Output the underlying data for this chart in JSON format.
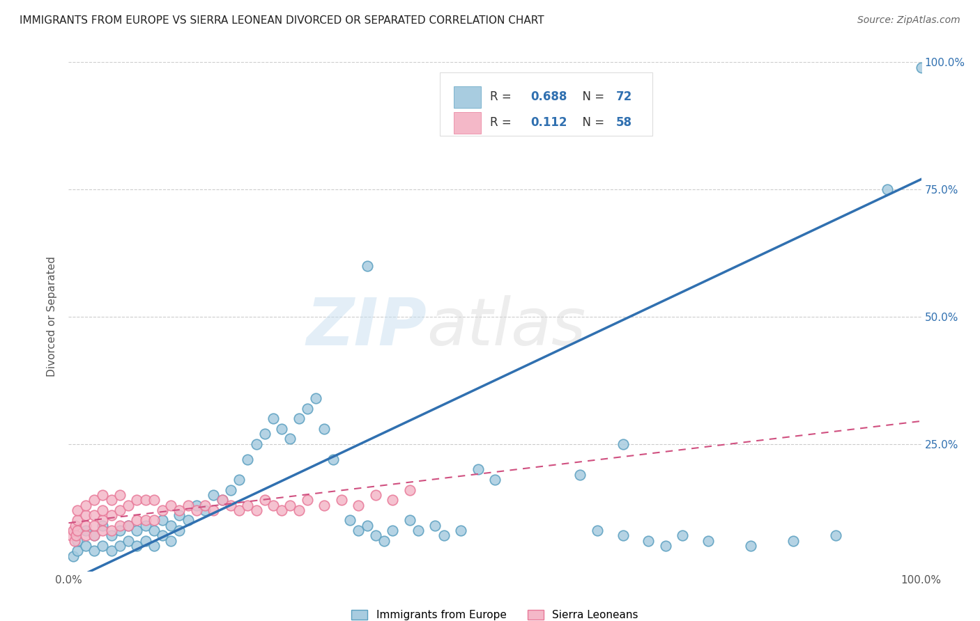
{
  "title": "IMMIGRANTS FROM EUROPE VS SIERRA LEONEAN DIVORCED OR SEPARATED CORRELATION CHART",
  "source": "Source: ZipAtlas.com",
  "ylabel": "Divorced or Separated",
  "xlim": [
    0,
    1
  ],
  "ylim": [
    0,
    1
  ],
  "legend_r1": "R = 0.688",
  "legend_n1": "N = 72",
  "legend_r2": "R =  0.112",
  "legend_n2": "N = 58",
  "blue_color": "#a8cce0",
  "blue_edge_color": "#5a9fc0",
  "pink_color": "#f4b8c8",
  "pink_edge_color": "#e87898",
  "blue_line_color": "#3070b0",
  "pink_line_color": "#d05080",
  "watermark_zip": "ZIP",
  "watermark_atlas": "atlas",
  "blue_line_y_start": -0.02,
  "blue_line_y_end": 0.77,
  "pink_line_y_start": 0.095,
  "pink_line_y_end": 0.295,
  "background_color": "#ffffff",
  "grid_color": "#cccccc",
  "blue_scatter_x": [
    0.005,
    0.01,
    0.01,
    0.02,
    0.02,
    0.03,
    0.03,
    0.04,
    0.04,
    0.05,
    0.05,
    0.06,
    0.06,
    0.07,
    0.07,
    0.08,
    0.08,
    0.09,
    0.09,
    0.1,
    0.1,
    0.11,
    0.11,
    0.12,
    0.12,
    0.13,
    0.13,
    0.14,
    0.15,
    0.16,
    0.17,
    0.18,
    0.19,
    0.2,
    0.21,
    0.22,
    0.23,
    0.24,
    0.25,
    0.26,
    0.27,
    0.28,
    0.29,
    0.3,
    0.31,
    0.33,
    0.34,
    0.35,
    0.36,
    0.37,
    0.38,
    0.4,
    0.41,
    0.43,
    0.44,
    0.46,
    0.48,
    0.5,
    0.6,
    0.62,
    0.65,
    0.68,
    0.7,
    0.72,
    0.75,
    0.8,
    0.85,
    0.9,
    0.96,
    1.0,
    0.35,
    0.65
  ],
  "blue_scatter_y": [
    0.03,
    0.04,
    0.06,
    0.05,
    0.08,
    0.04,
    0.07,
    0.05,
    0.09,
    0.04,
    0.07,
    0.05,
    0.08,
    0.06,
    0.09,
    0.05,
    0.08,
    0.06,
    0.09,
    0.05,
    0.08,
    0.07,
    0.1,
    0.06,
    0.09,
    0.08,
    0.11,
    0.1,
    0.13,
    0.12,
    0.15,
    0.14,
    0.16,
    0.18,
    0.22,
    0.25,
    0.27,
    0.3,
    0.28,
    0.26,
    0.3,
    0.32,
    0.34,
    0.28,
    0.22,
    0.1,
    0.08,
    0.09,
    0.07,
    0.06,
    0.08,
    0.1,
    0.08,
    0.09,
    0.07,
    0.08,
    0.2,
    0.18,
    0.19,
    0.08,
    0.07,
    0.06,
    0.05,
    0.07,
    0.06,
    0.05,
    0.06,
    0.07,
    0.75,
    0.99,
    0.6,
    0.25
  ],
  "pink_scatter_x": [
    0.003,
    0.005,
    0.007,
    0.008,
    0.009,
    0.01,
    0.01,
    0.01,
    0.02,
    0.02,
    0.02,
    0.02,
    0.03,
    0.03,
    0.03,
    0.03,
    0.04,
    0.04,
    0.04,
    0.04,
    0.05,
    0.05,
    0.05,
    0.06,
    0.06,
    0.06,
    0.07,
    0.07,
    0.08,
    0.08,
    0.09,
    0.09,
    0.1,
    0.1,
    0.11,
    0.12,
    0.13,
    0.14,
    0.15,
    0.16,
    0.17,
    0.18,
    0.19,
    0.2,
    0.21,
    0.22,
    0.23,
    0.24,
    0.25,
    0.26,
    0.27,
    0.28,
    0.3,
    0.32,
    0.34,
    0.36,
    0.38,
    0.4
  ],
  "pink_scatter_y": [
    0.07,
    0.08,
    0.06,
    0.09,
    0.07,
    0.08,
    0.1,
    0.12,
    0.07,
    0.09,
    0.11,
    0.13,
    0.07,
    0.09,
    0.11,
    0.14,
    0.08,
    0.1,
    0.12,
    0.15,
    0.08,
    0.11,
    0.14,
    0.09,
    0.12,
    0.15,
    0.09,
    0.13,
    0.1,
    0.14,
    0.1,
    0.14,
    0.1,
    0.14,
    0.12,
    0.13,
    0.12,
    0.13,
    0.12,
    0.13,
    0.12,
    0.14,
    0.13,
    0.12,
    0.13,
    0.12,
    0.14,
    0.13,
    0.12,
    0.13,
    0.12,
    0.14,
    0.13,
    0.14,
    0.13,
    0.15,
    0.14,
    0.16
  ]
}
